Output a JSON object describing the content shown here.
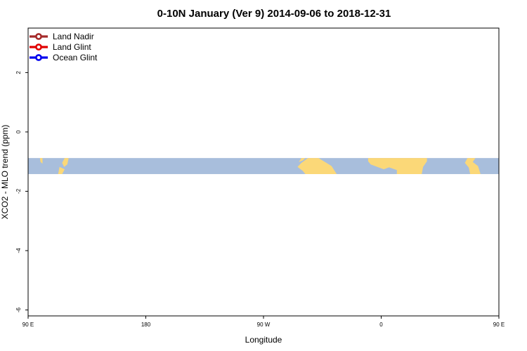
{
  "chart_data": {
    "type": "line",
    "title": "0-10N January (Ver 9)   2014-09-06 to 2018-12-31",
    "xlabel": "Longitude",
    "ylabel": "XCO2 - MLO trend (ppm)",
    "xlim": [
      90,
      450
    ],
    "ylim": [
      -6.2,
      3.5
    ],
    "x_ticks": [
      {
        "value": 90,
        "label": "90 E"
      },
      {
        "value": 180,
        "label": "180"
      },
      {
        "value": 270,
        "label": "90 W"
      },
      {
        "value": 360,
        "label": "0"
      },
      {
        "value": 450,
        "label": "90 E"
      },
      {
        "value": 540,
        "label": "180"
      }
    ],
    "y_ticks": [
      {
        "value": -6,
        "label": "-6"
      },
      {
        "value": -4,
        "label": "-4"
      },
      {
        "value": -2,
        "label": "-2"
      },
      {
        "value": 0,
        "label": "0"
      },
      {
        "value": 2,
        "label": "2"
      }
    ],
    "legend_position": "top-left",
    "grid": false,
    "background_map": {
      "lat_band": "0-10N",
      "y_range": [
        -1.42,
        -0.88
      ],
      "ocean_color": "#a8bedc",
      "land_color": "#fbd878"
    },
    "series": [
      {
        "name": "Land Nadir",
        "color": "#a52a2a",
        "points": []
      },
      {
        "name": "Land Glint",
        "color": "#e00000",
        "points": []
      },
      {
        "name": "Ocean Glint",
        "color": "#0000ee",
        "points": []
      }
    ]
  }
}
